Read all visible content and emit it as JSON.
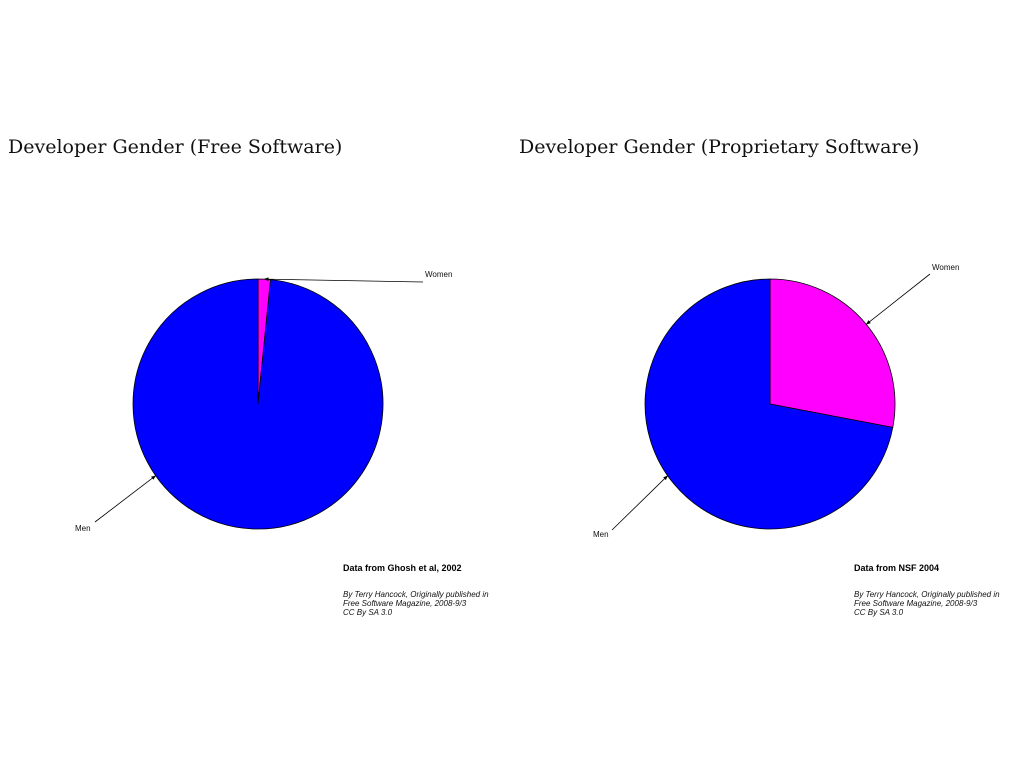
{
  "colors": {
    "men": "#0000ff",
    "women": "#ff00ff",
    "outline": "#000000",
    "leader": "#000000"
  },
  "chart_data": [
    {
      "type": "pie",
      "title": "Developer Gender (Free Software)",
      "labels": [
        "Men",
        "Women"
      ],
      "values": [
        98.4,
        1.6
      ],
      "start_angle_deg": 90,
      "direction": "clockwise",
      "source": "Data from Ghosh et al, 2002",
      "credit": [
        "By Terry Hancock, Originally published in",
        "Free Software Magazine, 2008-9/3",
        "CC By SA 3.0"
      ]
    },
    {
      "type": "pie",
      "title": "Developer Gender (Proprietary Software)",
      "labels": [
        "Men",
        "Women"
      ],
      "values": [
        72,
        28
      ],
      "start_angle_deg": 90,
      "direction": "clockwise",
      "source": "Data from NSF 2004",
      "credit": [
        "By Terry Hancock, Originally published in",
        "Free Software Magazine, 2008-9/3",
        "CC By SA 3.0"
      ]
    }
  ]
}
